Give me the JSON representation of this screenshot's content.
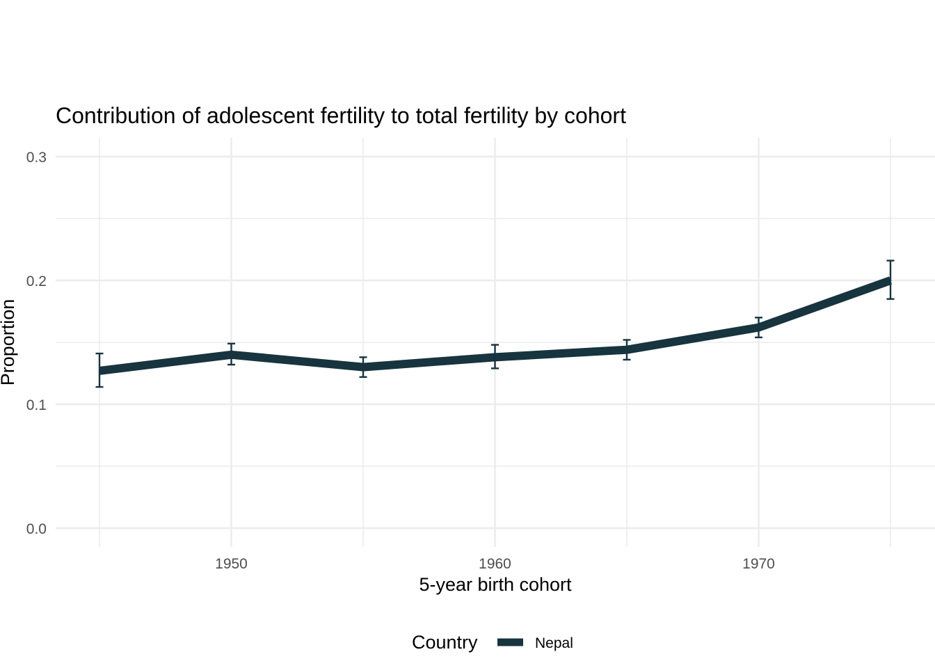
{
  "chart_data": {
    "type": "line",
    "title": "Contribution of adolescent fertility to total fertility by cohort",
    "xlabel": "5-year birth cohort",
    "ylabel": "Proportion",
    "xlim": [
      1943.3,
      1976.7
    ],
    "ylim": [
      0,
      0.3
    ],
    "x_ticks": [
      1950,
      1960,
      1970
    ],
    "x_tick_labels": [
      "1950",
      "1960",
      "1970"
    ],
    "y_ticks": [
      0.0,
      0.1,
      0.2,
      0.3
    ],
    "y_tick_labels": [
      "0.0",
      "0.1",
      "0.2",
      "0.3"
    ],
    "grid": true,
    "legend": {
      "title": "Country",
      "position": "bottom",
      "entries": [
        "Nepal"
      ]
    },
    "series": [
      {
        "name": "Nepal",
        "color": "#17343f",
        "x": [
          1945,
          1950,
          1955,
          1960,
          1965,
          1970,
          1975
        ],
        "y": [
          0.127,
          0.14,
          0.13,
          0.138,
          0.144,
          0.162,
          0.2
        ],
        "error_low": [
          0.114,
          0.132,
          0.122,
          0.129,
          0.136,
          0.154,
          0.185
        ],
        "error_high": [
          0.141,
          0.149,
          0.138,
          0.148,
          0.152,
          0.17,
          0.216
        ]
      }
    ]
  }
}
